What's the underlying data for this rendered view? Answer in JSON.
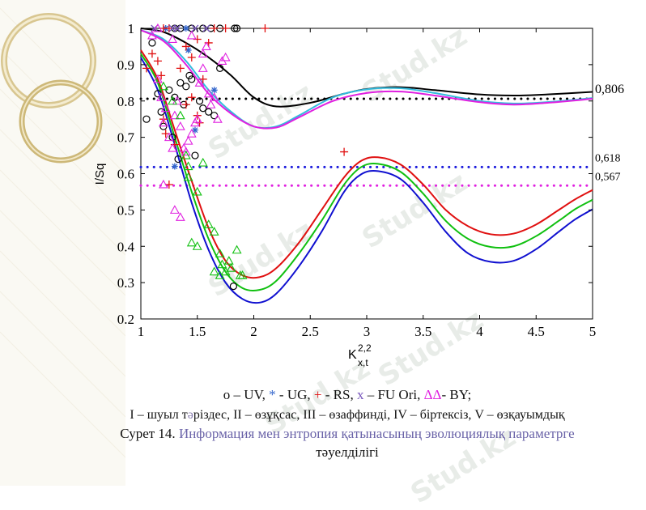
{
  "watermark": "Stud.kz",
  "chart_data": {
    "type": "line",
    "xlabel": "K",
    "xlabel_sup": "2,2",
    "xlabel_sub": "x,t",
    "ylabel": "I/Sq",
    "xlim": [
      1,
      5
    ],
    "ylim": [
      0.2,
      1
    ],
    "xticks": [
      1,
      1.5,
      2,
      2.5,
      3,
      3.5,
      4,
      4.5,
      5
    ],
    "xtick_labels": [
      "1",
      "1.5",
      "2",
      "2.5",
      "3",
      "3.5",
      "4",
      "4.5",
      "5"
    ],
    "yticks": [
      0.2,
      0.3,
      0.4,
      0.5,
      0.6,
      0.7,
      0.8,
      0.9,
      1
    ],
    "ytick_labels": [
      "0.2",
      "0.3",
      "0.4",
      "0.5",
      "0.6",
      "0.7",
      "0.8",
      "0.9",
      "1"
    ],
    "reference_lines": [
      {
        "y": 0.806,
        "label": "0,806",
        "color": "#000000"
      },
      {
        "y": 0.618,
        "label": "0,618",
        "color": "#1a1adc"
      },
      {
        "y": 0.567,
        "label": "0,567",
        "color": "#e020e0"
      }
    ],
    "series": [
      {
        "name": "black",
        "color": "#000000",
        "points": [
          [
            1,
            1
          ],
          [
            1.2,
            0.99
          ],
          [
            1.4,
            0.96
          ],
          [
            1.6,
            0.92
          ],
          [
            1.8,
            0.87
          ],
          [
            2,
            0.81
          ],
          [
            2.2,
            0.785
          ],
          [
            2.5,
            0.795
          ],
          [
            2.8,
            0.82
          ],
          [
            3,
            0.833
          ],
          [
            3.3,
            0.838
          ],
          [
            3.6,
            0.83
          ],
          [
            4,
            0.818
          ],
          [
            4.3,
            0.815
          ],
          [
            4.6,
            0.818
          ],
          [
            5,
            0.825
          ]
        ]
      },
      {
        "name": "cyan",
        "color": "#33bbdd",
        "points": [
          [
            1,
            0.995
          ],
          [
            1.2,
            0.97
          ],
          [
            1.4,
            0.91
          ],
          [
            1.6,
            0.83
          ],
          [
            1.8,
            0.77
          ],
          [
            2,
            0.73
          ],
          [
            2.2,
            0.73
          ],
          [
            2.4,
            0.76
          ],
          [
            2.7,
            0.81
          ],
          [
            3,
            0.832
          ],
          [
            3.3,
            0.835
          ],
          [
            3.6,
            0.822
          ],
          [
            4,
            0.8
          ],
          [
            4.3,
            0.793
          ],
          [
            4.6,
            0.797
          ],
          [
            5,
            0.808
          ]
        ]
      },
      {
        "name": "magenta",
        "color": "#e020e0",
        "points": [
          [
            1,
            0.995
          ],
          [
            1.2,
            0.965
          ],
          [
            1.4,
            0.9
          ],
          [
            1.6,
            0.82
          ],
          [
            1.8,
            0.765
          ],
          [
            2,
            0.73
          ],
          [
            2.2,
            0.727
          ],
          [
            2.4,
            0.755
          ],
          [
            2.7,
            0.8
          ],
          [
            3,
            0.822
          ],
          [
            3.3,
            0.826
          ],
          [
            3.6,
            0.815
          ],
          [
            4,
            0.797
          ],
          [
            4.3,
            0.79
          ],
          [
            4.6,
            0.795
          ],
          [
            5,
            0.806
          ]
        ]
      },
      {
        "name": "red",
        "color": "#e01010",
        "points": [
          [
            1,
            0.94
          ],
          [
            1.15,
            0.86
          ],
          [
            1.3,
            0.72
          ],
          [
            1.45,
            0.58
          ],
          [
            1.6,
            0.45
          ],
          [
            1.75,
            0.36
          ],
          [
            1.9,
            0.32
          ],
          [
            2.05,
            0.315
          ],
          [
            2.2,
            0.34
          ],
          [
            2.4,
            0.41
          ],
          [
            2.6,
            0.5
          ],
          [
            2.8,
            0.59
          ],
          [
            2.95,
            0.635
          ],
          [
            3.1,
            0.645
          ],
          [
            3.3,
            0.625
          ],
          [
            3.5,
            0.57
          ],
          [
            3.7,
            0.5
          ],
          [
            3.9,
            0.455
          ],
          [
            4.1,
            0.433
          ],
          [
            4.3,
            0.435
          ],
          [
            4.5,
            0.46
          ],
          [
            4.7,
            0.5
          ],
          [
            4.85,
            0.53
          ],
          [
            5,
            0.555
          ]
        ]
      },
      {
        "name": "green",
        "color": "#10c010",
        "points": [
          [
            1,
            0.93
          ],
          [
            1.15,
            0.85
          ],
          [
            1.3,
            0.7
          ],
          [
            1.45,
            0.55
          ],
          [
            1.6,
            0.42
          ],
          [
            1.75,
            0.33
          ],
          [
            1.9,
            0.285
          ],
          [
            2.05,
            0.28
          ],
          [
            2.2,
            0.305
          ],
          [
            2.4,
            0.38
          ],
          [
            2.6,
            0.47
          ],
          [
            2.8,
            0.57
          ],
          [
            2.95,
            0.618
          ],
          [
            3.1,
            0.627
          ],
          [
            3.3,
            0.605
          ],
          [
            3.5,
            0.545
          ],
          [
            3.7,
            0.47
          ],
          [
            3.9,
            0.42
          ],
          [
            4.1,
            0.398
          ],
          [
            4.3,
            0.4
          ],
          [
            4.5,
            0.428
          ],
          [
            4.7,
            0.47
          ],
          [
            4.85,
            0.503
          ],
          [
            5,
            0.528
          ]
        ]
      },
      {
        "name": "blue",
        "color": "#1010d0",
        "points": [
          [
            1,
            0.92
          ],
          [
            1.15,
            0.83
          ],
          [
            1.3,
            0.68
          ],
          [
            1.45,
            0.52
          ],
          [
            1.6,
            0.39
          ],
          [
            1.75,
            0.3
          ],
          [
            1.9,
            0.255
          ],
          [
            2.05,
            0.245
          ],
          [
            2.2,
            0.27
          ],
          [
            2.4,
            0.345
          ],
          [
            2.6,
            0.44
          ],
          [
            2.8,
            0.55
          ],
          [
            2.95,
            0.598
          ],
          [
            3.1,
            0.607
          ],
          [
            3.3,
            0.585
          ],
          [
            3.5,
            0.52
          ],
          [
            3.7,
            0.44
          ],
          [
            3.9,
            0.38
          ],
          [
            4.1,
            0.357
          ],
          [
            4.3,
            0.36
          ],
          [
            4.5,
            0.392
          ],
          [
            4.7,
            0.44
          ],
          [
            4.85,
            0.475
          ],
          [
            5,
            0.502
          ]
        ]
      }
    ],
    "markers": [
      {
        "type": "circle",
        "class": "UV",
        "color": "#000000",
        "points": [
          [
            1.05,
            0.75
          ],
          [
            1.1,
            0.96
          ],
          [
            1.15,
            0.82
          ],
          [
            1.18,
            0.77
          ],
          [
            1.2,
            0.73
          ],
          [
            1.25,
            0.83
          ],
          [
            1.28,
            0.7
          ],
          [
            1.3,
            0.81
          ],
          [
            1.33,
            0.64
          ],
          [
            1.35,
            0.85
          ],
          [
            1.38,
            0.79
          ],
          [
            1.4,
            0.84
          ],
          [
            1.43,
            0.87
          ],
          [
            1.45,
            0.86
          ],
          [
            1.48,
            0.65
          ],
          [
            1.52,
            0.8
          ],
          [
            1.55,
            0.78
          ],
          [
            1.6,
            0.77
          ],
          [
            1.65,
            0.76
          ],
          [
            1.7,
            0.89
          ],
          [
            1.82,
            0.29
          ],
          [
            1.3,
            1
          ],
          [
            1.35,
            1
          ],
          [
            1.45,
            1
          ],
          [
            1.55,
            1
          ],
          [
            1.62,
            1
          ],
          [
            1.7,
            1
          ],
          [
            1.83,
            1
          ],
          [
            1.85,
            1
          ]
        ]
      },
      {
        "type": "star",
        "class": "UG",
        "color": "#3366cc",
        "points": [
          [
            1.42,
            0.94
          ],
          [
            1.48,
            0.72
          ],
          [
            1.65,
            0.83
          ],
          [
            1.22,
            1
          ],
          [
            1.4,
            1
          ],
          [
            1.3,
            0.62
          ]
        ]
      },
      {
        "type": "plus",
        "class": "RS",
        "color": "#e01010",
        "points": [
          [
            1.05,
            0.89
          ],
          [
            1.1,
            0.93
          ],
          [
            1.15,
            0.91
          ],
          [
            1.18,
            0.87
          ],
          [
            1.2,
            0.75
          ],
          [
            1.22,
            0.71
          ],
          [
            1.25,
            0.57
          ],
          [
            1.3,
            0.68
          ],
          [
            1.35,
            0.89
          ],
          [
            1.4,
            0.79
          ],
          [
            1.45,
            0.81
          ],
          [
            1.5,
            0.76
          ],
          [
            1.52,
            0.74
          ],
          [
            1.55,
            0.86
          ],
          [
            1.2,
            1
          ],
          [
            1.25,
            1
          ],
          [
            1.4,
            0.95
          ],
          [
            1.45,
            0.92
          ],
          [
            1.5,
            0.97
          ],
          [
            1.6,
            0.96
          ],
          [
            1.65,
            1
          ],
          [
            1.75,
            1
          ],
          [
            2.1,
            1
          ],
          [
            2.8,
            0.66
          ]
        ]
      },
      {
        "type": "cross",
        "class": "FU Ori",
        "color": "#7755bb",
        "points": [
          [
            1.12,
            1
          ],
          [
            1.28,
            1
          ],
          [
            1.32,
            1
          ],
          [
            1.48,
            1
          ],
          [
            1.58,
            1
          ]
        ]
      },
      {
        "type": "triangle",
        "class": "BY",
        "color": "#e020e0",
        "points": [
          [
            1.1,
            0.98
          ],
          [
            1.15,
            0.86
          ],
          [
            1.18,
            0.81
          ],
          [
            1.2,
            0.74
          ],
          [
            1.22,
            0.78
          ],
          [
            1.25,
            0.7
          ],
          [
            1.28,
            0.67
          ],
          [
            1.3,
            0.76
          ],
          [
            1.32,
            0.8
          ],
          [
            1.35,
            0.73
          ],
          [
            1.38,
            0.67
          ],
          [
            1.4,
            0.66
          ],
          [
            1.42,
            0.69
          ],
          [
            1.45,
            0.71
          ],
          [
            1.48,
            0.74
          ],
          [
            1.5,
            0.75
          ],
          [
            1.52,
            0.85
          ],
          [
            1.55,
            0.89
          ],
          [
            1.58,
            0.95
          ],
          [
            1.6,
            0.82
          ],
          [
            1.62,
            0.79
          ],
          [
            1.65,
            0.81
          ],
          [
            1.68,
            0.75
          ],
          [
            1.72,
            0.91
          ],
          [
            1.75,
            0.92
          ],
          [
            1.3,
            0.5
          ],
          [
            1.35,
            0.48
          ],
          [
            1.2,
            0.57
          ],
          [
            1.15,
            1
          ],
          [
            1.28,
            0.97
          ],
          [
            1.45,
            0.98
          ],
          [
            1.55,
            0.93
          ]
        ]
      },
      {
        "type": "triangle",
        "class": "BY",
        "color": "#10c010",
        "points": [
          [
            1.2,
            0.84
          ],
          [
            1.28,
            0.8
          ],
          [
            1.35,
            0.76
          ],
          [
            1.4,
            0.65
          ],
          [
            1.42,
            0.59
          ],
          [
            1.45,
            0.41
          ],
          [
            1.5,
            0.4
          ],
          [
            1.55,
            0.63
          ],
          [
            1.6,
            0.46
          ],
          [
            1.65,
            0.44
          ],
          [
            1.7,
            0.38
          ],
          [
            1.72,
            0.35
          ],
          [
            1.75,
            0.33
          ],
          [
            1.78,
            0.36
          ],
          [
            1.8,
            0.34
          ],
          [
            1.85,
            0.39
          ],
          [
            1.9,
            0.32
          ],
          [
            1.5,
            0.55
          ],
          [
            1.42,
            0.62
          ],
          [
            1.65,
            0.33
          ],
          [
            1.7,
            0.32
          ],
          [
            1.88,
            0.32
          ]
        ]
      }
    ]
  },
  "caption": {
    "line1_parts": [
      {
        "text": "o – UV, ",
        "color": "#111111"
      },
      {
        "text": "*",
        "color": "#3366cc"
      },
      {
        "text": " - UG, ",
        "color": "#111111"
      },
      {
        "text": "+",
        "color": "#e01010"
      },
      {
        "text": " - RS, ",
        "color": "#111111"
      },
      {
        "text": "x",
        "color": "#7755bb"
      },
      {
        "text": " – FU Ori, ",
        "color": "#111111"
      },
      {
        "text": "ΔΔ",
        "color": "#e020e0"
      },
      {
        "text": "- BY;",
        "color": "#111111"
      }
    ],
    "line2_a": "I – шуыл т",
    "line2_b": "ə",
    "line2_c": "різдес, II – өзұқсас, III – өзаффинді, IV – біртексіз, V – өзқауымдық",
    "line3_a": "Сурет 14. ",
    "line3_b": "Информация мен энтропия қатынасының эволюциялық параметрге",
    "line4": "тәуелділігі"
  }
}
